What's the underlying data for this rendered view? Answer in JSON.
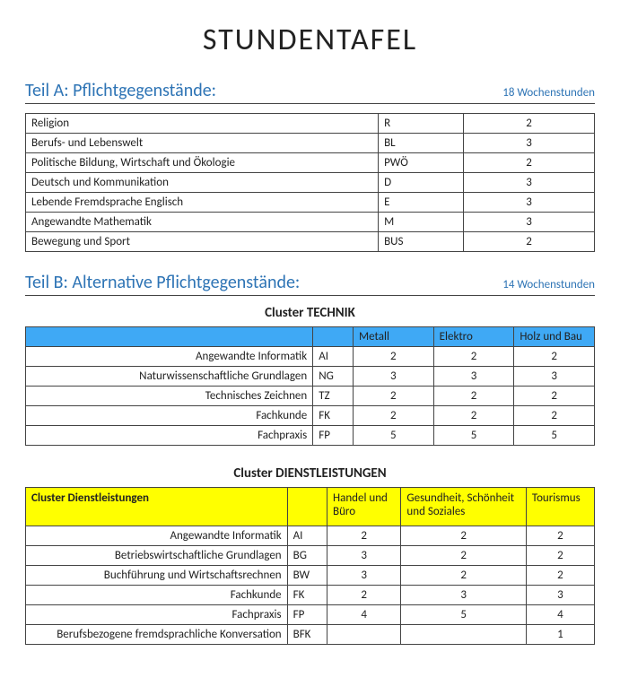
{
  "colors": {
    "heading_blue": "#2e74b5",
    "cluster_tech_header_bg": "#3fa9f5",
    "cluster_dienst_header_bg": "#ffff00",
    "border": "#444444",
    "text": "#222222"
  },
  "page_title": "STUNDENTAFEL",
  "teilA": {
    "title": "Teil A: Pflichtgegenstände:",
    "hours_label": "18 Wochenstunden",
    "rows": [
      {
        "name": "Religion",
        "code": "R",
        "hours": "2"
      },
      {
        "name": "Berufs- und Lebenswelt",
        "code": "BL",
        "hours": "3"
      },
      {
        "name": "Politische Bildung, Wirtschaft und Ökologie",
        "code": "PWÖ",
        "hours": "2"
      },
      {
        "name": "Deutsch und Kommunikation",
        "code": "D",
        "hours": "3"
      },
      {
        "name": "Lebende Fremdsprache Englisch",
        "code": "E",
        "hours": "3"
      },
      {
        "name": "Angewandte Mathematik",
        "code": "M",
        "hours": "3"
      },
      {
        "name": "Bewegung und Sport",
        "code": "BUS",
        "hours": "2"
      }
    ]
  },
  "teilB": {
    "title": "Teil B: Alternative Pflichtgegenstände:",
    "hours_label": "14 Wochenstunden"
  },
  "cluster_technik": {
    "title": "Cluster TECHNIK",
    "columns": [
      "Metall",
      "Elektro",
      "Holz und Bau"
    ],
    "rows": [
      {
        "name": "Angewandte Informatik",
        "code": "AI",
        "v": [
          "2",
          "2",
          "2"
        ]
      },
      {
        "name": "Naturwissenschaftliche Grundlagen",
        "code": "NG",
        "v": [
          "3",
          "3",
          "3"
        ]
      },
      {
        "name": "Technisches Zeichnen",
        "code": "TZ",
        "v": [
          "2",
          "2",
          "2"
        ]
      },
      {
        "name": "Fachkunde",
        "code": "FK",
        "v": [
          "2",
          "2",
          "2"
        ]
      },
      {
        "name": "Fachpraxis",
        "code": "FP",
        "v": [
          "5",
          "5",
          "5"
        ]
      }
    ]
  },
  "cluster_dienst": {
    "title": "Cluster DIENSTLEISTUNGEN",
    "header_label": "Cluster Dienstleistungen",
    "columns": [
      "Handel und Büro",
      "Gesundheit, Schönheit und Soziales",
      "Tourismus"
    ],
    "rows": [
      {
        "name": "Angewandte Informatik",
        "code": "AI",
        "v": [
          "2",
          "2",
          "2"
        ]
      },
      {
        "name": "Betriebswirtschaftliche Grundlagen",
        "code": "BG",
        "v": [
          "3",
          "2",
          "2"
        ]
      },
      {
        "name": "Buchführung und Wirtschaftsrechnen",
        "code": "BW",
        "v": [
          "3",
          "2",
          "2"
        ]
      },
      {
        "name": "Fachkunde",
        "code": "FK",
        "v": [
          "2",
          "3",
          "3"
        ]
      },
      {
        "name": "Fachpraxis",
        "code": "FP",
        "v": [
          "4",
          "5",
          "4"
        ]
      },
      {
        "name": "Berufsbezogene fremdsprachliche Konversation",
        "code": "BFK",
        "v": [
          "",
          "",
          "1"
        ]
      }
    ]
  }
}
